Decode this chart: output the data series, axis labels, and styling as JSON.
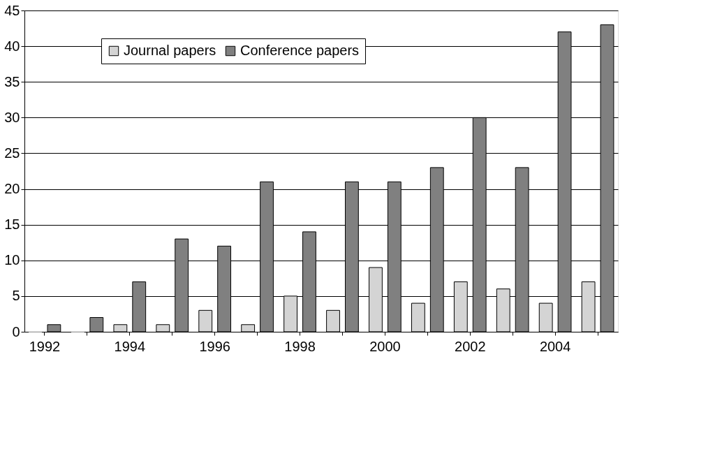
{
  "chart_data": {
    "type": "bar",
    "categories": [
      "1992",
      null,
      "1994",
      null,
      "1996",
      null,
      "1998",
      null,
      "2000",
      null,
      "2002",
      null,
      "2004",
      null
    ],
    "series": [
      {
        "name": "Journal papers",
        "color": "#d4d4d4",
        "values": [
          0,
          0,
          1,
          1,
          3,
          1,
          5,
          3,
          9,
          4,
          7,
          6,
          4,
          7
        ]
      },
      {
        "name": "Conference papers",
        "color": "#808080",
        "values": [
          1,
          2,
          7,
          13,
          12,
          21,
          14,
          21,
          21,
          23,
          30,
          23,
          42,
          43
        ]
      }
    ],
    "ylim": [
      0,
      45
    ],
    "yticks": [
      0,
      5,
      10,
      15,
      20,
      25,
      30,
      35,
      40,
      45
    ],
    "grid": "y",
    "legend": "top left"
  }
}
